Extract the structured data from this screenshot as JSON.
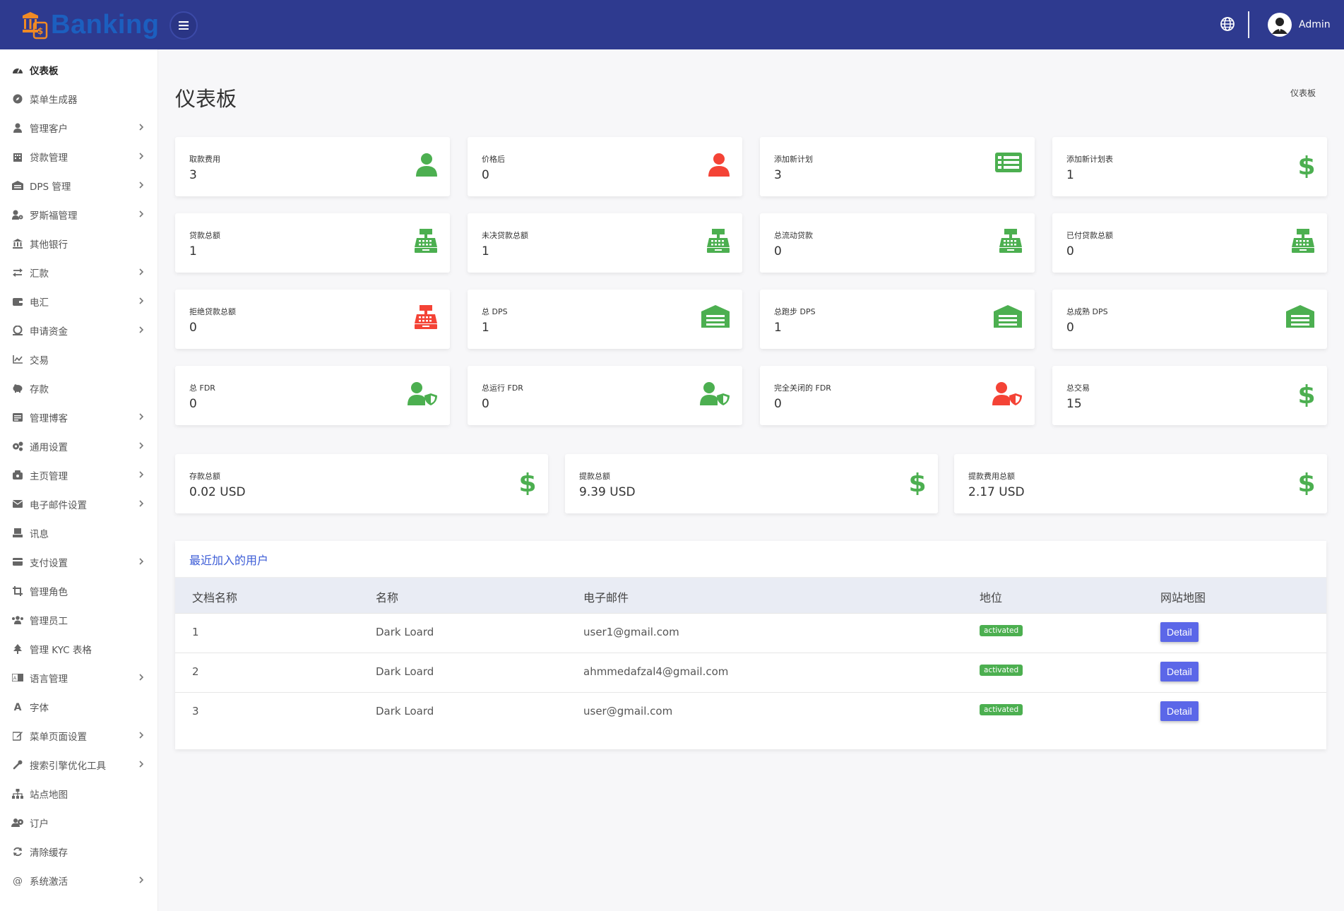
{
  "header": {
    "logo_text": "Banking",
    "admin_name": "Admin"
  },
  "sidebar": {
    "items": [
      {
        "label": "仪表板",
        "icon": "dashboard-icon",
        "chevron": false,
        "active": true
      },
      {
        "label": "菜单生成器",
        "icon": "compass-icon",
        "chevron": false
      },
      {
        "label": "管理客户",
        "icon": "user-icon",
        "chevron": true
      },
      {
        "label": "贷款管理",
        "icon": "building-icon",
        "chevron": true
      },
      {
        "label": "DPS 管理",
        "icon": "garage-icon",
        "chevron": true
      },
      {
        "label": "罗斯福管理",
        "icon": "user-cog-icon",
        "chevron": true
      },
      {
        "label": "其他银行",
        "icon": "bank-icon",
        "chevron": false
      },
      {
        "label": "汇款",
        "icon": "exchange-icon",
        "chevron": true
      },
      {
        "label": "电汇",
        "icon": "wallet-icon",
        "chevron": true
      },
      {
        "label": "申请资金",
        "icon": "money-icon",
        "chevron": true
      },
      {
        "label": "交易",
        "icon": "chart-line-icon",
        "chevron": false
      },
      {
        "label": "存款",
        "icon": "piggy-bank-icon",
        "chevron": false
      },
      {
        "label": "管理博客",
        "icon": "blog-icon",
        "chevron": true
      },
      {
        "label": "通用设置",
        "icon": "cogs-icon",
        "chevron": true
      },
      {
        "label": "主页管理",
        "icon": "home-cog-icon",
        "chevron": true
      },
      {
        "label": "电子邮件设置",
        "icon": "envelope-icon",
        "chevron": true
      },
      {
        "label": "讯息",
        "icon": "inbox-icon",
        "chevron": false
      },
      {
        "label": "支付设置",
        "icon": "credit-card-icon",
        "chevron": true
      },
      {
        "label": "管理角色",
        "icon": "crop-icon",
        "chevron": false
      },
      {
        "label": "管理员工",
        "icon": "users-icon",
        "chevron": false
      },
      {
        "label": "管理 KYC 表格",
        "icon": "tree-icon",
        "chevron": false
      },
      {
        "label": "语言管理",
        "icon": "language-icon",
        "chevron": true
      },
      {
        "label": "字体",
        "icon": "font-icon",
        "chevron": false
      },
      {
        "label": "菜单页面设置",
        "icon": "edit-icon",
        "chevron": true
      },
      {
        "label": "搜索引擎优化工具",
        "icon": "wrench-icon",
        "chevron": true
      },
      {
        "label": "站点地图",
        "icon": "sitemap-icon",
        "chevron": false
      },
      {
        "label": "订户",
        "icon": "subscribers-icon",
        "chevron": false
      },
      {
        "label": "清除缓存",
        "icon": "sync-icon",
        "chevron": false
      },
      {
        "label": "系统激活",
        "icon": "at-icon",
        "chevron": true
      }
    ]
  },
  "page": {
    "title": "仪表板",
    "breadcrumb": "仪表板"
  },
  "stat_cards": [
    {
      "label": "取款费用",
      "value": "3",
      "icon": "user-icon",
      "color": "#4caf50"
    },
    {
      "label": "价格后",
      "value": "0",
      "icon": "user-icon",
      "color": "#f44336"
    },
    {
      "label": "添加新计划",
      "value": "3",
      "icon": "list-card-icon",
      "color": "#4caf50"
    },
    {
      "label": "添加新计划表",
      "value": "1",
      "icon": "dollar-icon",
      "color": "#4caf50"
    },
    {
      "label": "贷款总额",
      "value": "1",
      "icon": "cash-register-icon",
      "color": "#4caf50"
    },
    {
      "label": "未决贷款总额",
      "value": "1",
      "icon": "cash-register-icon",
      "color": "#4caf50"
    },
    {
      "label": "总流动贷款",
      "value": "0",
      "icon": "cash-register-icon",
      "color": "#4caf50"
    },
    {
      "label": "已付贷款总额",
      "value": "0",
      "icon": "cash-register-icon",
      "color": "#4caf50"
    },
    {
      "label": "拒绝贷款总额",
      "value": "0",
      "icon": "cash-register-icon",
      "color": "#f44336"
    },
    {
      "label": "总 DPS",
      "value": "1",
      "icon": "warehouse-icon",
      "color": "#4caf50"
    },
    {
      "label": "总跑步 DPS",
      "value": "1",
      "icon": "warehouse-icon",
      "color": "#4caf50"
    },
    {
      "label": "总成熟 DPS",
      "value": "0",
      "icon": "warehouse-icon",
      "color": "#4caf50"
    },
    {
      "label": "总 FDR",
      "value": "0",
      "icon": "user-shield-icon",
      "color": "#4caf50"
    },
    {
      "label": "总运行 FDR",
      "value": "0",
      "icon": "user-shield-icon",
      "color": "#4caf50"
    },
    {
      "label": "完全关闭的 FDR",
      "value": "0",
      "icon": "user-shield-icon",
      "color": "#f44336"
    },
    {
      "label": "总交易",
      "value": "15",
      "icon": "dollar-icon",
      "color": "#4caf50"
    }
  ],
  "total_cards": [
    {
      "label": "存款总额",
      "value": "0.02 USD",
      "icon": "dollar-icon",
      "color": "#4caf50"
    },
    {
      "label": "提款总额",
      "value": "9.39 USD",
      "icon": "dollar-icon",
      "color": "#4caf50"
    },
    {
      "label": "提款费用总额",
      "value": "2.17 USD",
      "icon": "dollar-icon",
      "color": "#4caf50"
    }
  ],
  "recent_users": {
    "title": "最近加入的用户",
    "columns": [
      "文档名称",
      "名称",
      "电子邮件",
      "地位",
      "网站地图"
    ],
    "rows": [
      {
        "id": "1",
        "name": "Dark Loard",
        "email": "user1@gmail.com",
        "status": "activated",
        "action": "Detail"
      },
      {
        "id": "2",
        "name": "Dark Loard",
        "email": "ahmmedafzal4@gmail.com",
        "status": "activated",
        "action": "Detail"
      },
      {
        "id": "3",
        "name": "Dark Loard",
        "email": "user@gmail.com",
        "status": "activated",
        "action": "Detail"
      }
    ]
  },
  "colors": {
    "header_bg": "#2e3a8f",
    "green": "#4caf50",
    "red": "#f44336",
    "button": "#5b67e8",
    "link_title": "#3b5bd6"
  }
}
